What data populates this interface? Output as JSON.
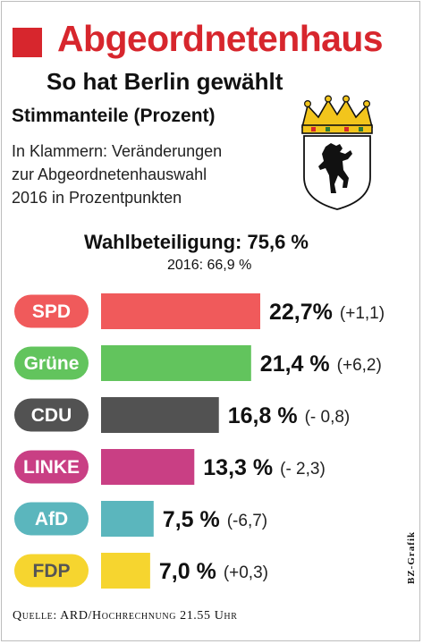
{
  "header": {
    "title": "Abgeordnetenhaus",
    "subtitle": "So hat Berlin gewählt",
    "accent_color": "#d7262d"
  },
  "section": {
    "title": "Stimmanteile (Prozent)",
    "note_lines": [
      "In Klammern: Veränderungen",
      "zur Abgeordnetenhauswahl",
      "2016 in Prozentpunkten"
    ]
  },
  "crest": {
    "icon": "berlin-bear-coat-of-arms-icon"
  },
  "turnout": {
    "label": "Wahlbeteiligung: 75,6 %",
    "previous": "2016: 66,9 %"
  },
  "chart_data": {
    "type": "bar",
    "orientation": "horizontal",
    "title": "Stimmanteile (Prozent)",
    "categories": [
      "SPD",
      "Grüne",
      "CDU",
      "LINKE",
      "AfD",
      "FDP"
    ],
    "values": [
      22.7,
      21.4,
      16.8,
      13.3,
      7.5,
      7.0
    ],
    "value_labels": [
      "22,7%",
      "21,4 %",
      "16,8 %",
      "13,3 %",
      "7,5 %",
      "7,0 %"
    ],
    "change_labels": [
      "(+1,1)",
      "(+6,2)",
      "(- 0,8)",
      "(- 2,3)",
      "(-6,7)",
      "(+0,3)"
    ],
    "changes": [
      1.1,
      6.2,
      -0.8,
      -2.3,
      -6.7,
      0.3
    ],
    "colors": [
      "#f05a5b",
      "#62c45d",
      "#525252",
      "#c93f84",
      "#5bb6bd",
      "#f6d52f"
    ],
    "pill_text_colors": [
      "#ffffff",
      "#ffffff",
      "#ffffff",
      "#ffffff",
      "#ffffff",
      "#555555"
    ],
    "xlim": [
      0,
      22.7
    ],
    "grid": false,
    "legend": "none"
  },
  "footer": {
    "source": "Quelle: ARD/Hochrechnung 21.55 Uhr",
    "credit": "BZ-Grafik"
  }
}
